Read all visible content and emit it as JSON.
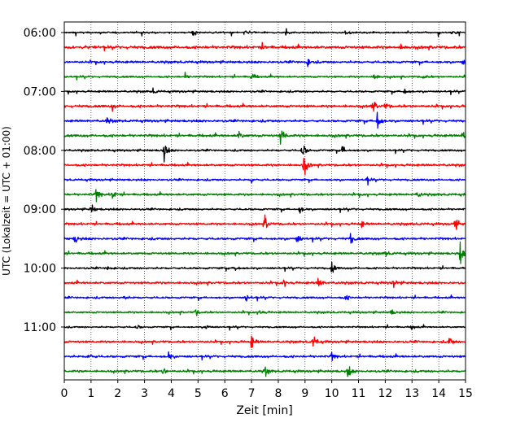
{
  "chart_data": {
    "type": "line",
    "title": "",
    "xlabel": "Zeit  [min]",
    "ylabel": "UTC (Lokalzeit = UTC + 01:00)",
    "xlim": [
      0,
      15
    ],
    "x_ticks": [
      "0",
      "1",
      "2",
      "3",
      "4",
      "5",
      "6",
      "7",
      "8",
      "9",
      "10",
      "11",
      "12",
      "13",
      "14",
      "15"
    ],
    "y_ticks": [
      "06:00",
      "07:00",
      "08:00",
      "09:00",
      "10:00",
      "11:00"
    ],
    "grid": "vertical dotted lines at each minute",
    "row_interval_minutes": 15,
    "series_colors": [
      "#000000",
      "#ff0000",
      "#0000ff",
      "#008000"
    ],
    "rows": [
      {
        "start": "06:00",
        "color": "#000000",
        "amp": 0.05,
        "events": [
          [
            4.8,
            0.22
          ],
          [
            6.8,
            0.2
          ],
          [
            8.3,
            0.28
          ],
          [
            10.5,
            0.18
          ],
          [
            14.5,
            0.2
          ]
        ]
      },
      {
        "start": "06:15",
        "color": "#ff0000",
        "amp": 0.09,
        "events": [
          [
            7.4,
            0.25
          ],
          [
            12.6,
            0.2
          ]
        ]
      },
      {
        "start": "06:30",
        "color": "#0000ff",
        "amp": 0.07,
        "events": [
          [
            9.1,
            0.28
          ],
          [
            14.9,
            0.25
          ]
        ]
      },
      {
        "start": "06:45",
        "color": "#008000",
        "amp": 0.06,
        "events": [
          [
            4.5,
            0.22
          ],
          [
            7.0,
            0.3
          ],
          [
            11.6,
            0.35
          ],
          [
            13.4,
            0.2
          ]
        ]
      },
      {
        "start": "07:00",
        "color": "#000000",
        "amp": 0.06,
        "events": [
          [
            3.3,
            0.22
          ],
          [
            12.7,
            0.35
          ]
        ]
      },
      {
        "start": "07:15",
        "color": "#ff0000",
        "amp": 0.08,
        "events": [
          [
            1.8,
            0.25
          ],
          [
            11.5,
            0.55
          ],
          [
            12.0,
            0.25
          ]
        ]
      },
      {
        "start": "07:30",
        "color": "#0000ff",
        "amp": 0.07,
        "events": [
          [
            1.6,
            0.25
          ],
          [
            11.7,
            1.05
          ]
        ]
      },
      {
        "start": "07:45",
        "color": "#008000",
        "amp": 0.08,
        "events": [
          [
            6.5,
            0.45
          ],
          [
            8.1,
            0.75
          ],
          [
            14.9,
            0.45
          ]
        ]
      },
      {
        "start": "08:00",
        "color": "#000000",
        "amp": 0.06,
        "events": [
          [
            3.7,
            1.0
          ],
          [
            8.9,
            0.65
          ],
          [
            10.4,
            0.35
          ]
        ]
      },
      {
        "start": "08:15",
        "color": "#ff0000",
        "amp": 0.07,
        "events": [
          [
            8.95,
            0.9
          ]
        ]
      },
      {
        "start": "08:30",
        "color": "#0000ff",
        "amp": 0.06,
        "events": [
          [
            7.0,
            0.2
          ],
          [
            11.3,
            0.2
          ]
        ]
      },
      {
        "start": "08:45",
        "color": "#008000",
        "amp": 0.07,
        "events": [
          [
            1.2,
            0.5
          ],
          [
            1.8,
            0.45
          ],
          [
            13.2,
            0.22
          ]
        ]
      },
      {
        "start": "09:00",
        "color": "#000000",
        "amp": 0.06,
        "events": [
          [
            1.0,
            0.45
          ],
          [
            8.8,
            0.38
          ]
        ]
      },
      {
        "start": "09:15",
        "color": "#ff0000",
        "amp": 0.07,
        "events": [
          [
            7.5,
            0.5
          ],
          [
            11.1,
            0.25
          ],
          [
            14.6,
            0.45
          ]
        ]
      },
      {
        "start": "09:30",
        "color": "#0000ff",
        "amp": 0.07,
        "events": [
          [
            0.4,
            0.3
          ],
          [
            8.7,
            0.4
          ],
          [
            10.7,
            0.4
          ]
        ]
      },
      {
        "start": "09:45",
        "color": "#008000",
        "amp": 0.07,
        "events": [
          [
            12.0,
            0.2
          ],
          [
            14.8,
            0.75
          ]
        ]
      },
      {
        "start": "10:00",
        "color": "#000000",
        "amp": 0.06,
        "events": [
          [
            1.6,
            0.2
          ],
          [
            6.4,
            0.35
          ],
          [
            10.0,
            0.4
          ]
        ]
      },
      {
        "start": "10:15",
        "color": "#ff0000",
        "amp": 0.07,
        "events": [
          [
            8.2,
            0.25
          ],
          [
            9.5,
            0.45
          ],
          [
            12.3,
            0.3
          ]
        ]
      },
      {
        "start": "10:30",
        "color": "#0000ff",
        "amp": 0.06,
        "events": [
          [
            2.2,
            0.2
          ],
          [
            6.8,
            0.25
          ],
          [
            10.5,
            0.22
          ]
        ]
      },
      {
        "start": "10:45",
        "color": "#008000",
        "amp": 0.06,
        "events": [
          [
            4.9,
            0.25
          ],
          [
            7.3,
            0.22
          ],
          [
            12.2,
            0.25
          ]
        ]
      },
      {
        "start": "11:00",
        "color": "#000000",
        "amp": 0.05,
        "events": [
          [
            2.7,
            0.2
          ],
          [
            5.3,
            0.22
          ],
          [
            13.0,
            0.2
          ]
        ]
      },
      {
        "start": "11:15",
        "color": "#ff0000",
        "amp": 0.07,
        "events": [
          [
            7.0,
            0.5
          ],
          [
            9.3,
            0.45
          ],
          [
            14.4,
            0.4
          ]
        ]
      },
      {
        "start": "11:30",
        "color": "#0000ff",
        "amp": 0.07,
        "events": [
          [
            0.9,
            0.35
          ],
          [
            3.9,
            0.3
          ],
          [
            10.0,
            0.3
          ]
        ]
      },
      {
        "start": "11:45",
        "color": "#008000",
        "amp": 0.07,
        "events": [
          [
            3.7,
            0.3
          ],
          [
            7.5,
            0.35
          ],
          [
            10.6,
            0.5
          ]
        ]
      }
    ]
  }
}
